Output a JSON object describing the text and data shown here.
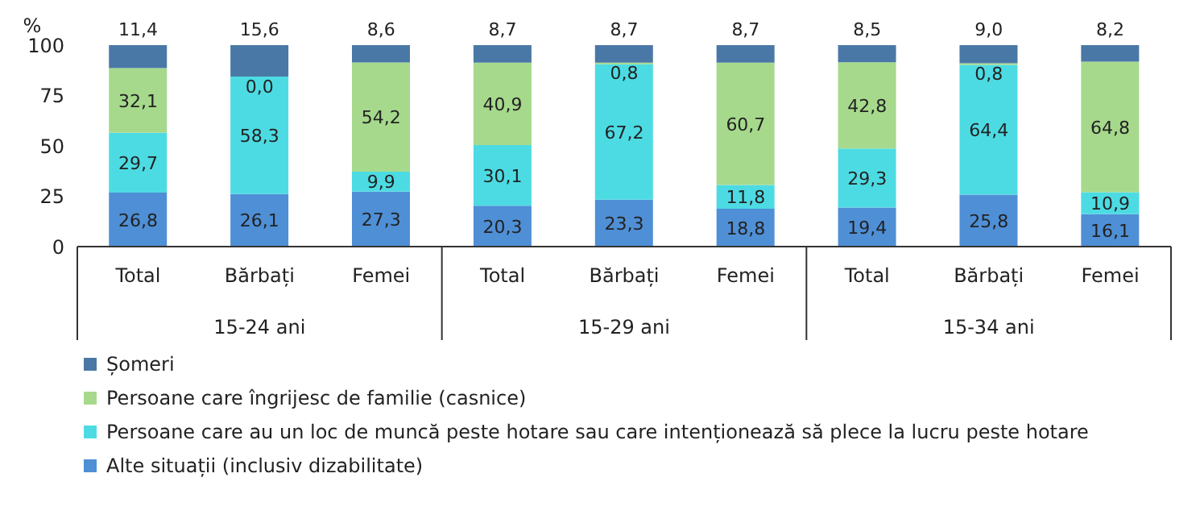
{
  "chart_data": {
    "type": "bar",
    "stacked": true,
    "ylabel": "%",
    "categories": [
      "Total",
      "Bărbați",
      "Femei",
      "Total",
      "Bărbați",
      "Femei",
      "Total",
      "Bărbați",
      "Femei"
    ],
    "annotations": [
      "15-24 ani",
      "15-29 ani",
      "15-34 ani"
    ],
    "series": [
      {
        "name": "Alte situații (inclusiv dizabilitate)",
        "color": "#4f8fd6",
        "values": [
          26.8,
          26.1,
          27.3,
          20.3,
          23.3,
          18.8,
          19.4,
          25.8,
          16.1
        ],
        "value_labels": [
          "26,8",
          "26,1",
          "27,3",
          "20,3",
          "23,3",
          "18,8",
          "19,4",
          "25,8",
          "16,1"
        ]
      },
      {
        "name": "Persoane care au un loc de muncă peste hotare sau care intenționează să plece la lucru peste hotare",
        "color": "#4ddbe3",
        "values": [
          29.7,
          58.3,
          9.9,
          30.1,
          67.2,
          11.8,
          29.3,
          64.4,
          10.9
        ],
        "value_labels": [
          "29,7",
          "58,3",
          "9,9",
          "30,1",
          "67,2",
          "11,8",
          "29,3",
          "64,4",
          "10,9"
        ]
      },
      {
        "name": "Persoane care îngrijesc de familie (casnice)",
        "color": "#a6d98c",
        "values": [
          32.1,
          0.0,
          54.2,
          40.9,
          0.8,
          60.7,
          42.8,
          0.8,
          64.8
        ],
        "value_labels": [
          "32,1",
          "0,0",
          "54,2",
          "40,9",
          "0,8",
          "60,7",
          "42,8",
          "0,8",
          "64,8"
        ]
      },
      {
        "name": "Șomeri",
        "color": "#4a78a6",
        "values": [
          11.4,
          15.6,
          8.6,
          8.7,
          8.7,
          8.7,
          8.5,
          9.0,
          8.2
        ],
        "value_labels": [
          "11,4",
          "15,6",
          "8,6",
          "8,7",
          "8,7",
          "8,7",
          "8,5",
          "9,0",
          "8,2"
        ]
      }
    ],
    "ylim": [
      0,
      100
    ],
    "yticks": [
      0,
      25,
      50,
      75,
      100
    ],
    "grid": false,
    "legend": "bottom"
  }
}
